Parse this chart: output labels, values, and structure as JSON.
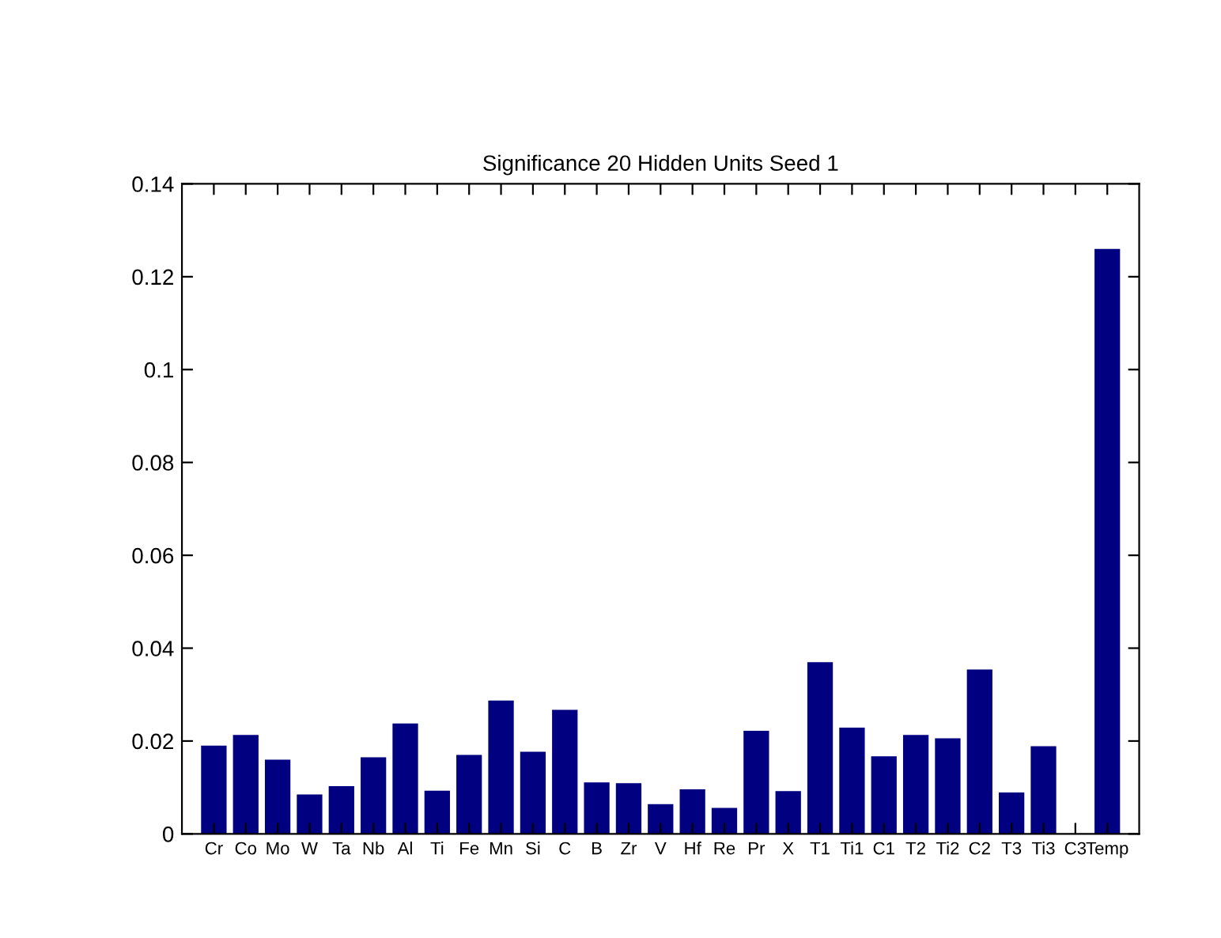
{
  "chart_data": {
    "type": "bar",
    "title": "Significance 20 Hidden Units Seed 1",
    "categories": [
      "Cr",
      "Co",
      "Mo",
      "W",
      "Ta",
      "Nb",
      "Al",
      "Ti",
      "Fe",
      "Mn",
      "Si",
      "C",
      "B",
      "Zr",
      "V",
      "Hf",
      "Re",
      "Pr",
      "X",
      "T1",
      "Ti1",
      "C1",
      "T2",
      "Ti2",
      "C2",
      "T3",
      "Ti3",
      "C3",
      "Temp"
    ],
    "values": [
      0.019,
      0.0213,
      0.016,
      0.0085,
      0.0103,
      0.0165,
      0.0238,
      0.0093,
      0.017,
      0.0287,
      0.0177,
      0.0267,
      0.0111,
      0.0109,
      0.0064,
      0.0096,
      0.0056,
      0.0222,
      0.0092,
      0.037,
      0.0229,
      0.0167,
      0.0213,
      0.0206,
      0.0354,
      0.0089,
      0.0189,
      0,
      0.126
    ],
    "color": "#000080",
    "ylim": [
      0,
      0.14
    ],
    "yticks": [
      {
        "value": 0,
        "label": "0"
      },
      0.02,
      0.04,
      0.06,
      0.08,
      0.1,
      0.12,
      0.14
    ],
    "grid": false
  }
}
